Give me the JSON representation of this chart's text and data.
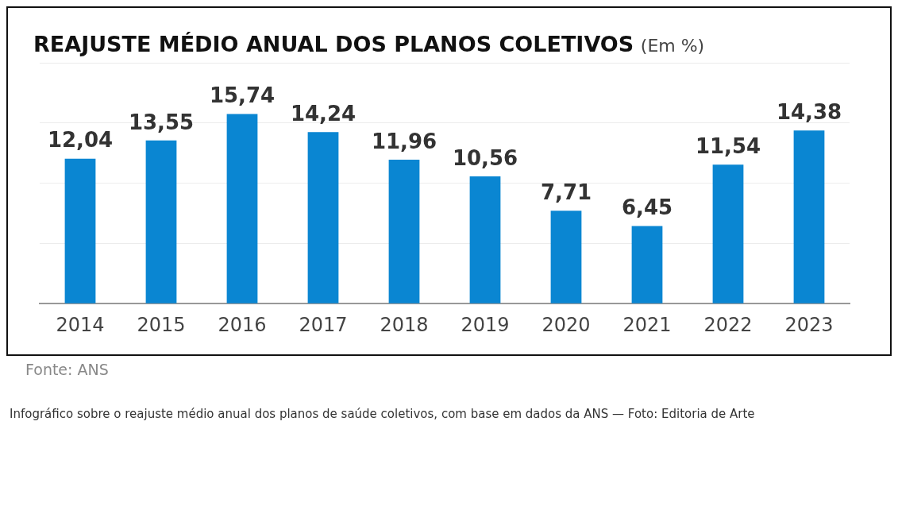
{
  "chart_data": {
    "type": "bar",
    "title": "REAJUSTE MÉDIO ANUAL DOS PLANOS COLETIVOS",
    "subtitle": "(Em %)",
    "categories": [
      "2014",
      "2015",
      "2016",
      "2017",
      "2018",
      "2019",
      "2020",
      "2021",
      "2022",
      "2023"
    ],
    "values": [
      12.04,
      13.55,
      15.74,
      14.24,
      11.96,
      10.56,
      7.71,
      6.45,
      11.54,
      14.38
    ],
    "value_labels": [
      "12,04",
      "13,55",
      "15,74",
      "14,24",
      "11,96",
      "10,56",
      "7,71",
      "6,45",
      "11,54",
      "14,38"
    ],
    "color": "#0a86d2",
    "ylim": [
      0,
      20
    ],
    "yticks": [
      {
        "value": 0,
        "label": null
      },
      {
        "value": 5,
        "label": null
      },
      {
        "value": 10,
        "label": null
      },
      {
        "value": 15,
        "label": null
      },
      {
        "value": 20,
        "label": null
      }
    ],
    "tick_labels": "x",
    "grid": "y",
    "legend": false,
    "annotations": [
      "Fonte: ANS",
      "Infográfico sobre o reajuste médio anual dos planos de saúde coletivos, com base em dados da ANS — Foto: Editoria de Arte"
    ]
  }
}
